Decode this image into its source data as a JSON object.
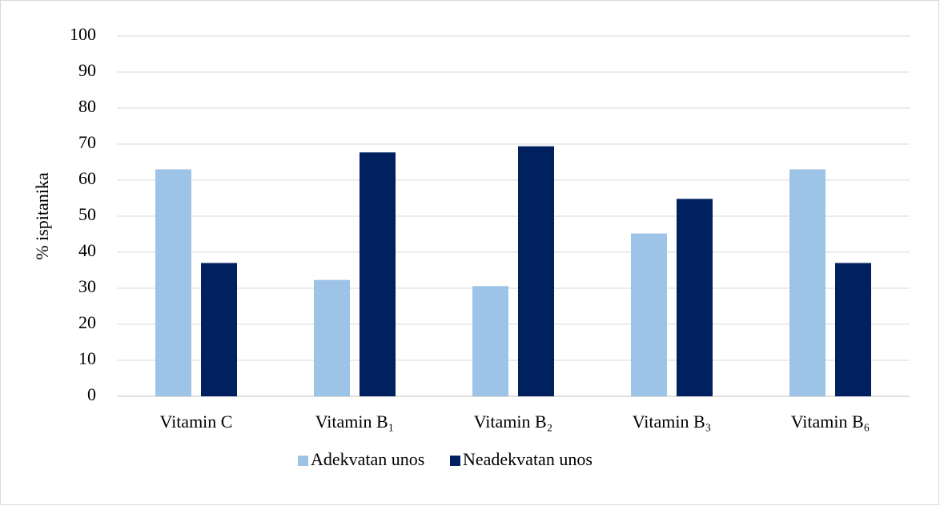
{
  "chart_data": {
    "type": "bar",
    "y_label": "% ispitanika",
    "categories": [
      "Vitamin C",
      "Vitamin B₁",
      "Vitamin B₂",
      "Vitamin B₃",
      "Vitamin B₆"
    ],
    "series": [
      {
        "name": "Adekvatan unos",
        "color": "#9dc3e6",
        "values": [
          63,
          32.3,
          30.6,
          45.2,
          63
        ]
      },
      {
        "name": "Neadekvatan unos",
        "color": "#002060",
        "values": [
          37,
          67.7,
          69.4,
          54.8,
          37
        ]
      }
    ],
    "ylim": [
      0,
      100
    ],
    "yticks": [
      0,
      10,
      20,
      30,
      40,
      50,
      60,
      70,
      80,
      90,
      100
    ],
    "grid": true,
    "legend": "bottom"
  }
}
